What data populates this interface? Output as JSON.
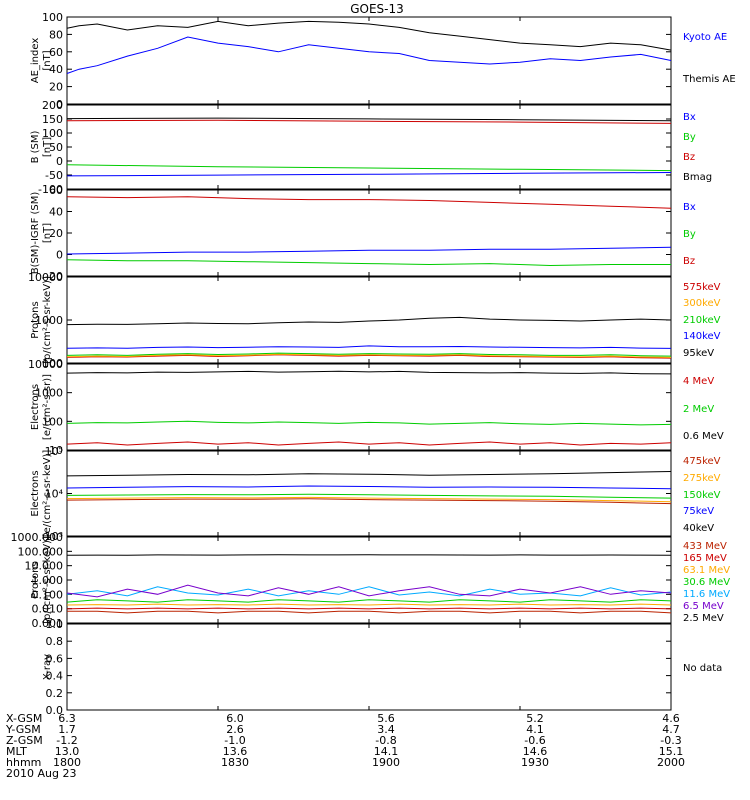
{
  "title": "GOES-13",
  "colors": {
    "black": "#000000",
    "blue": "#0000ff",
    "green": "#00cc00",
    "red": "#cc0000",
    "orange": "#ffaa00",
    "cyan": "#00aaff",
    "purple": "#7700cc",
    "darkred": "#bb2200"
  },
  "footer": {
    "rows": [
      {
        "label": "X-GSM",
        "values": [
          "6.3",
          "6.0",
          "5.6",
          "5.2",
          "4.6"
        ]
      },
      {
        "label": "Y-GSM",
        "values": [
          "1.7",
          "2.6",
          "3.4",
          "4.1",
          "4.7"
        ]
      },
      {
        "label": "Z-GSM",
        "values": [
          "-1.2",
          "-1.0",
          "-0.8",
          "-0.6",
          "-0.3"
        ]
      },
      {
        "label": "MLT",
        "values": [
          "13.0",
          "13.6",
          "14.1",
          "14.6",
          "15.1"
        ]
      },
      {
        "label": "hhmm",
        "values": [
          "1800",
          "1830",
          "1900",
          "1930",
          "2000"
        ]
      }
    ],
    "date": "2010 Aug 23"
  },
  "chart_data": [
    {
      "type": "line",
      "ylabel": "AE_index\n[nT]",
      "scale": "linear",
      "ylim": [
        0,
        100
      ],
      "yticks": [
        "0",
        "20",
        "40",
        "60",
        "80",
        "100"
      ],
      "x": [
        0,
        0.02,
        0.05,
        0.1,
        0.15,
        0.2,
        0.25,
        0.3,
        0.35,
        0.4,
        0.45,
        0.5,
        0.55,
        0.6,
        0.65,
        0.7,
        0.75,
        0.8,
        0.85,
        0.9,
        0.95,
        1.0
      ],
      "series": [
        {
          "name": "Kyoto AE",
          "color": "blue",
          "values": [
            35,
            40,
            44,
            55,
            64,
            77,
            70,
            66,
            60,
            68,
            64,
            60,
            58,
            50,
            48,
            46,
            48,
            52,
            50,
            54,
            57,
            50
          ]
        },
        {
          "name": "Themis AE",
          "color": "black",
          "values": [
            87,
            90,
            92,
            85,
            90,
            88,
            95,
            90,
            93,
            95,
            94,
            92,
            88,
            82,
            78,
            74,
            70,
            68,
            66,
            70,
            68,
            62
          ]
        }
      ],
      "legend_colors": [
        "blue",
        "black"
      ]
    },
    {
      "type": "line",
      "ylabel": "B (SM)\n[nT]",
      "scale": "linear",
      "ylim": [
        -110,
        210
      ],
      "yticks": [
        "-100",
        "-50",
        "0",
        "50",
        "100",
        "150",
        "200"
      ],
      "x": [
        0,
        0.25,
        0.5,
        0.75,
        1.0
      ],
      "series": [
        {
          "name": "Bx",
          "color": "blue",
          "values": [
            -60,
            -57,
            -54,
            -50,
            -47
          ]
        },
        {
          "name": "By",
          "color": "green",
          "values": [
            -18,
            -25,
            -30,
            -35,
            -40
          ]
        },
        {
          "name": "Bz",
          "color": "red",
          "values": [
            150,
            152,
            148,
            145,
            140
          ]
        },
        {
          "name": "Bmag",
          "color": "black",
          "values": [
            158,
            160,
            157,
            154,
            150
          ]
        }
      ],
      "legend_colors": [
        "blue",
        "green",
        "red",
        "black"
      ]
    },
    {
      "type": "line",
      "ylabel": "B(SM)-IGRF (SM)\n[nT]",
      "scale": "linear",
      "ylim": [
        -25,
        65
      ],
      "yticks": [
        "-20",
        "0",
        "20",
        "40",
        "60"
      ],
      "x": [
        0,
        0.1,
        0.2,
        0.3,
        0.4,
        0.5,
        0.6,
        0.7,
        0.8,
        0.9,
        1.0
      ],
      "series": [
        {
          "name": "Bx",
          "color": "blue",
          "values": [
            -2,
            -1,
            0,
            0,
            1,
            2,
            2,
            3,
            3,
            4,
            5
          ]
        },
        {
          "name": "By",
          "color": "green",
          "values": [
            -8,
            -9,
            -9,
            -10,
            -11,
            -12,
            -13,
            -12,
            -14,
            -13,
            -13
          ]
        },
        {
          "name": "Bz",
          "color": "red",
          "values": [
            58,
            57,
            58,
            56,
            55,
            55,
            54,
            52,
            50,
            48,
            46
          ]
        }
      ],
      "legend_colors": [
        "blue",
        "green",
        "red"
      ]
    },
    {
      "type": "line",
      "ylabel": "Protons\n[p/(cm²-s-sr-keV)]",
      "scale": "log",
      "ylim": [
        100,
        10000
      ],
      "yticks": [
        "100",
        "1000",
        "10000"
      ],
      "x": [
        0,
        0.05,
        0.1,
        0.15,
        0.2,
        0.25,
        0.3,
        0.35,
        0.4,
        0.45,
        0.5,
        0.55,
        0.6,
        0.65,
        0.7,
        0.75,
        0.8,
        0.85,
        0.9,
        0.95,
        1.0
      ],
      "series": [
        {
          "name": "575keV",
          "color": "red",
          "values": [
            135,
            140,
            138,
            145,
            150,
            142,
            148,
            155,
            150,
            145,
            150,
            148,
            145,
            150,
            142,
            140,
            138,
            135,
            140,
            132,
            130
          ]
        },
        {
          "name": "300keV",
          "color": "orange",
          "values": [
            140,
            145,
            142,
            150,
            155,
            148,
            152,
            160,
            155,
            150,
            155,
            152,
            150,
            155,
            148,
            145,
            142,
            140,
            145,
            138,
            135
          ]
        },
        {
          "name": "210keV",
          "color": "green",
          "values": [
            150,
            155,
            150,
            160,
            165,
            158,
            162,
            170,
            165,
            160,
            165,
            162,
            160,
            165,
            158,
            155,
            150,
            150,
            155,
            148,
            145
          ]
        },
        {
          "name": "140keV",
          "color": "blue",
          "values": [
            220,
            225,
            220,
            230,
            235,
            228,
            232,
            240,
            235,
            230,
            250,
            240,
            238,
            242,
            235,
            232,
            228,
            225,
            230,
            222,
            218
          ]
        },
        {
          "name": "95keV",
          "color": "black",
          "values": [
            780,
            800,
            790,
            820,
            850,
            830,
            820,
            860,
            900,
            880,
            950,
            1000,
            1100,
            1150,
            1050,
            1000,
            980,
            950,
            1000,
            1050,
            1000
          ]
        }
      ],
      "legend_colors": [
        "red",
        "orange",
        "green",
        "blue",
        "black"
      ]
    },
    {
      "type": "line",
      "ylabel": "Electrons\n[e/(cm²-s-sr)]",
      "scale": "log",
      "ylim": [
        10,
        10000
      ],
      "yticks": [
        "10",
        "100",
        "1000",
        "10000"
      ],
      "x": [
        0,
        0.05,
        0.1,
        0.15,
        0.2,
        0.25,
        0.3,
        0.35,
        0.4,
        0.45,
        0.5,
        0.55,
        0.6,
        0.65,
        0.7,
        0.75,
        0.8,
        0.85,
        0.9,
        0.95,
        1.0
      ],
      "series": [
        {
          "name": "4 MeV",
          "color": "red",
          "values": [
            16,
            18,
            15,
            17,
            19,
            16,
            18,
            15,
            17,
            19,
            16,
            18,
            15,
            17,
            19,
            16,
            18,
            15,
            17,
            16,
            18
          ]
        },
        {
          "name": "2 MeV",
          "color": "green",
          "values": [
            85,
            90,
            88,
            95,
            100,
            92,
            88,
            95,
            90,
            85,
            92,
            88,
            80,
            85,
            90,
            82,
            78,
            85,
            80,
            75,
            78
          ]
        },
        {
          "name": "0.6 MeV",
          "color": "black",
          "values": [
            4800,
            5000,
            4900,
            5200,
            5100,
            5300,
            5500,
            5200,
            5400,
            5600,
            5300,
            5500,
            5100,
            5000,
            4900,
            5000,
            4800,
            4700,
            4900,
            4600,
            4500
          ]
        }
      ],
      "legend_colors": [
        "red",
        "green",
        "black"
      ]
    },
    {
      "type": "line",
      "ylabel": "Electrons\n[e/(cm²-s-sr-keV)]",
      "scale": "log",
      "ylim": [
        1000,
        100000
      ],
      "yticks": [
        "10³",
        "10⁴",
        "10⁵"
      ],
      "x": [
        0,
        0.1,
        0.2,
        0.3,
        0.4,
        0.5,
        0.6,
        0.7,
        0.8,
        0.9,
        1.0
      ],
      "series": [
        {
          "name": "475keV",
          "color": "darkred",
          "values": [
            7000,
            7200,
            7400,
            7300,
            7500,
            7200,
            7000,
            6800,
            6600,
            6200,
            5800
          ]
        },
        {
          "name": "275keV",
          "color": "orange",
          "values": [
            7600,
            7800,
            8000,
            7900,
            8100,
            7800,
            7600,
            7400,
            7200,
            6800,
            6400
          ]
        },
        {
          "name": "150keV",
          "color": "green",
          "values": [
            9000,
            9200,
            9400,
            9300,
            9600,
            9300,
            9000,
            8800,
            8600,
            8200,
            7800
          ]
        },
        {
          "name": "75keV",
          "color": "blue",
          "values": [
            13500,
            14000,
            14500,
            14200,
            15000,
            14600,
            14000,
            14200,
            14000,
            13500,
            13000
          ]
        },
        {
          "name": "40keV",
          "color": "black",
          "values": [
            26000,
            27000,
            28000,
            27500,
            29000,
            28500,
            27000,
            28000,
            29000,
            31000,
            33000
          ]
        }
      ],
      "legend_colors": [
        "darkred",
        "orange",
        "green",
        "blue",
        "black"
      ]
    },
    {
      "type": "line",
      "ylabel": "Protons\n[p/(cm²-s-sr-keV)]",
      "scale": "log",
      "ylim": [
        0.0005,
        2000
      ],
      "yticks": [
        "0.001",
        "0.010",
        "0.100",
        "1.000",
        "10.000",
        "100.000",
        "1000.000"
      ],
      "x": [
        0,
        0.05,
        0.1,
        0.15,
        0.2,
        0.25,
        0.3,
        0.35,
        0.4,
        0.45,
        0.5,
        0.55,
        0.6,
        0.65,
        0.7,
        0.75,
        0.8,
        0.85,
        0.9,
        0.95,
        1.0
      ],
      "series": [
        {
          "name": "433 MeV",
          "color": "darkred",
          "values": [
            0.004,
            0.004,
            0.003,
            0.004,
            0.004,
            0.003,
            0.004,
            0.004,
            0.003,
            0.004,
            0.004,
            0.003,
            0.004,
            0.004,
            0.003,
            0.004,
            0.004,
            0.003,
            0.004,
            0.004,
            0.003
          ]
        },
        {
          "name": "165 MeV",
          "color": "red",
          "values": [
            0.006,
            0.007,
            0.006,
            0.007,
            0.006,
            0.007,
            0.006,
            0.007,
            0.006,
            0.007,
            0.006,
            0.007,
            0.006,
            0.007,
            0.006,
            0.007,
            0.006,
            0.007,
            0.006,
            0.007,
            0.006
          ]
        },
        {
          "name": "63.1 MeV",
          "color": "orange",
          "values": [
            0.012,
            0.013,
            0.012,
            0.014,
            0.012,
            0.013,
            0.012,
            0.014,
            0.012,
            0.013,
            0.012,
            0.014,
            0.012,
            0.013,
            0.012,
            0.014,
            0.012,
            0.013,
            0.012,
            0.014,
            0.012
          ]
        },
        {
          "name": "30.6 MeV",
          "color": "green",
          "values": [
            0.02,
            0.03,
            0.025,
            0.02,
            0.03,
            0.025,
            0.02,
            0.03,
            0.025,
            0.02,
            0.03,
            0.025,
            0.02,
            0.03,
            0.025,
            0.02,
            0.03,
            0.025,
            0.02,
            0.03,
            0.025
          ]
        },
        {
          "name": "11.6 MeV",
          "color": "cyan",
          "values": [
            0.08,
            0.15,
            0.06,
            0.3,
            0.1,
            0.07,
            0.2,
            0.06,
            0.15,
            0.08,
            0.3,
            0.07,
            0.12,
            0.06,
            0.2,
            0.08,
            0.1,
            0.06,
            0.25,
            0.07,
            0.12
          ]
        },
        {
          "name": "6.5 MeV",
          "color": "purple",
          "values": [
            0.1,
            0.05,
            0.2,
            0.08,
            0.4,
            0.1,
            0.06,
            0.25,
            0.08,
            0.3,
            0.06,
            0.15,
            0.3,
            0.08,
            0.06,
            0.2,
            0.1,
            0.3,
            0.08,
            0.15,
            0.1
          ]
        },
        {
          "name": "2.5 MeV",
          "color": "black",
          "values": [
            80,
            82,
            80,
            85,
            83,
            82,
            84,
            86,
            85,
            84,
            86,
            85,
            84,
            83,
            82,
            84,
            82,
            81,
            83,
            82,
            80
          ]
        }
      ],
      "legend_colors": [
        "darkred",
        "red",
        "orange",
        "green",
        "cyan",
        "purple",
        "black"
      ]
    },
    {
      "type": "line",
      "ylabel": "X-ray",
      "scale": "linear",
      "ylim": [
        0,
        1
      ],
      "yticks": [
        "0.0",
        "0.2",
        "0.4",
        "0.6",
        "0.8",
        "1.0"
      ],
      "x": [],
      "series": [],
      "no_data_label": "No data"
    }
  ]
}
